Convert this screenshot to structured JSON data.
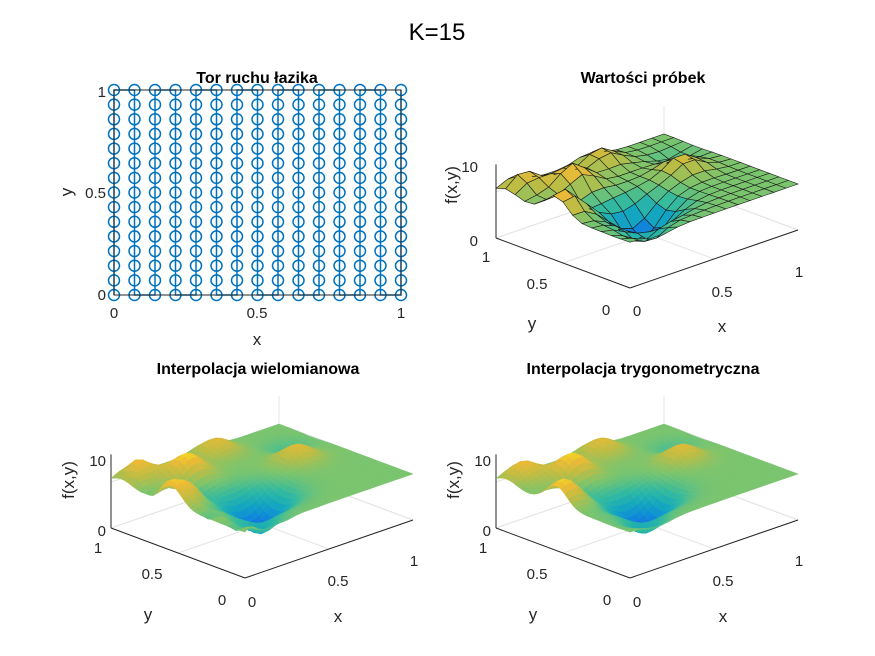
{
  "figure": {
    "title": "K=15"
  },
  "chart_data": [
    {
      "type": "scatter",
      "title": "Tor ruchu łazika",
      "xlabel": "x",
      "ylabel": "y",
      "xlim": [
        0,
        1
      ],
      "ylim": [
        0,
        1
      ],
      "xticks": [
        "0",
        "0.5",
        "1"
      ],
      "yticks": [
        "0",
        "0.5",
        "1"
      ],
      "marker": "o",
      "color": "#0072BD",
      "grid_points_per_axis": 15,
      "path": "serpentine: vertical passes at 15 x positions from 0 to 1, 15 samples each"
    },
    {
      "type": "surface",
      "title": "Wartości próbek",
      "xlabel": "x",
      "ylabel": "y",
      "zlabel": "f(x,y)",
      "xticks": [
        "0",
        "0.5",
        "1"
      ],
      "yticks": [
        "0",
        "0.5",
        "1"
      ],
      "zticks": [
        "0",
        "10"
      ],
      "zlim": [
        0,
        16
      ],
      "grid": "15x15 samples",
      "colormap": "parula",
      "style": "faceted mesh"
    },
    {
      "type": "surface",
      "title": "Interpolacja wielomianowa",
      "xlabel": "x",
      "ylabel": "y",
      "zlabel": "f(x,y)",
      "xticks": [
        "0",
        "0.5",
        "1"
      ],
      "yticks": [
        "0",
        "0.5",
        "1"
      ],
      "zticks": [
        "0",
        "10"
      ],
      "zlim": [
        0,
        16
      ],
      "colormap": "parula",
      "style": "smooth shaded"
    },
    {
      "type": "surface",
      "title": "Interpolacja trygonometryczna",
      "xlabel": "x",
      "ylabel": "y",
      "zlabel": "f(x,y)",
      "xticks": [
        "0",
        "0.5",
        "1"
      ],
      "yticks": [
        "0",
        "0.5",
        "1"
      ],
      "zticks": [
        "0",
        "10"
      ],
      "zlim": [
        0,
        16
      ],
      "colormap": "parula",
      "style": "smooth shaded"
    }
  ]
}
